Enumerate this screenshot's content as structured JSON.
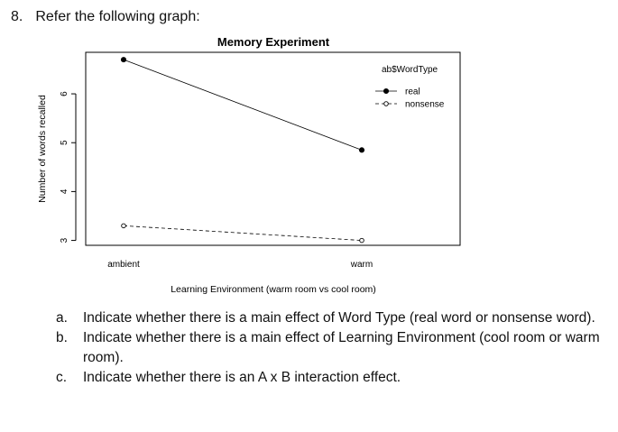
{
  "question": {
    "number": "8.",
    "prompt": "Refer the following graph:"
  },
  "chart_data": {
    "type": "line",
    "title": "Memory Experiment",
    "xlabel": "Learning Environment (warm room vs cool room)",
    "ylabel": "Number of words recalled",
    "categories": [
      "ambient",
      "warm"
    ],
    "yticks": [
      3,
      4,
      5,
      6
    ],
    "ylim": [
      2.9,
      6.85
    ],
    "grid": false,
    "legend": {
      "title": "ab$WordType",
      "placement": "top-right"
    },
    "series": [
      {
        "name": "real",
        "values": [
          6.7,
          4.85
        ],
        "marker": "filled-circle",
        "line": "solid",
        "color": "#000000"
      },
      {
        "name": "nonsense",
        "values": [
          3.3,
          3.0
        ],
        "marker": "open-circle",
        "line": "dashed",
        "color": "#000000"
      }
    ]
  },
  "subquestions": [
    {
      "letter": "a.",
      "text": "Indicate whether there is a main effect of Word Type (real word or nonsense word)."
    },
    {
      "letter": "b.",
      "text": "Indicate whether there is a main effect of Learning Environment (cool room or warm room)."
    },
    {
      "letter": "c.",
      "text": "Indicate whether there is an A x B interaction effect."
    }
  ]
}
